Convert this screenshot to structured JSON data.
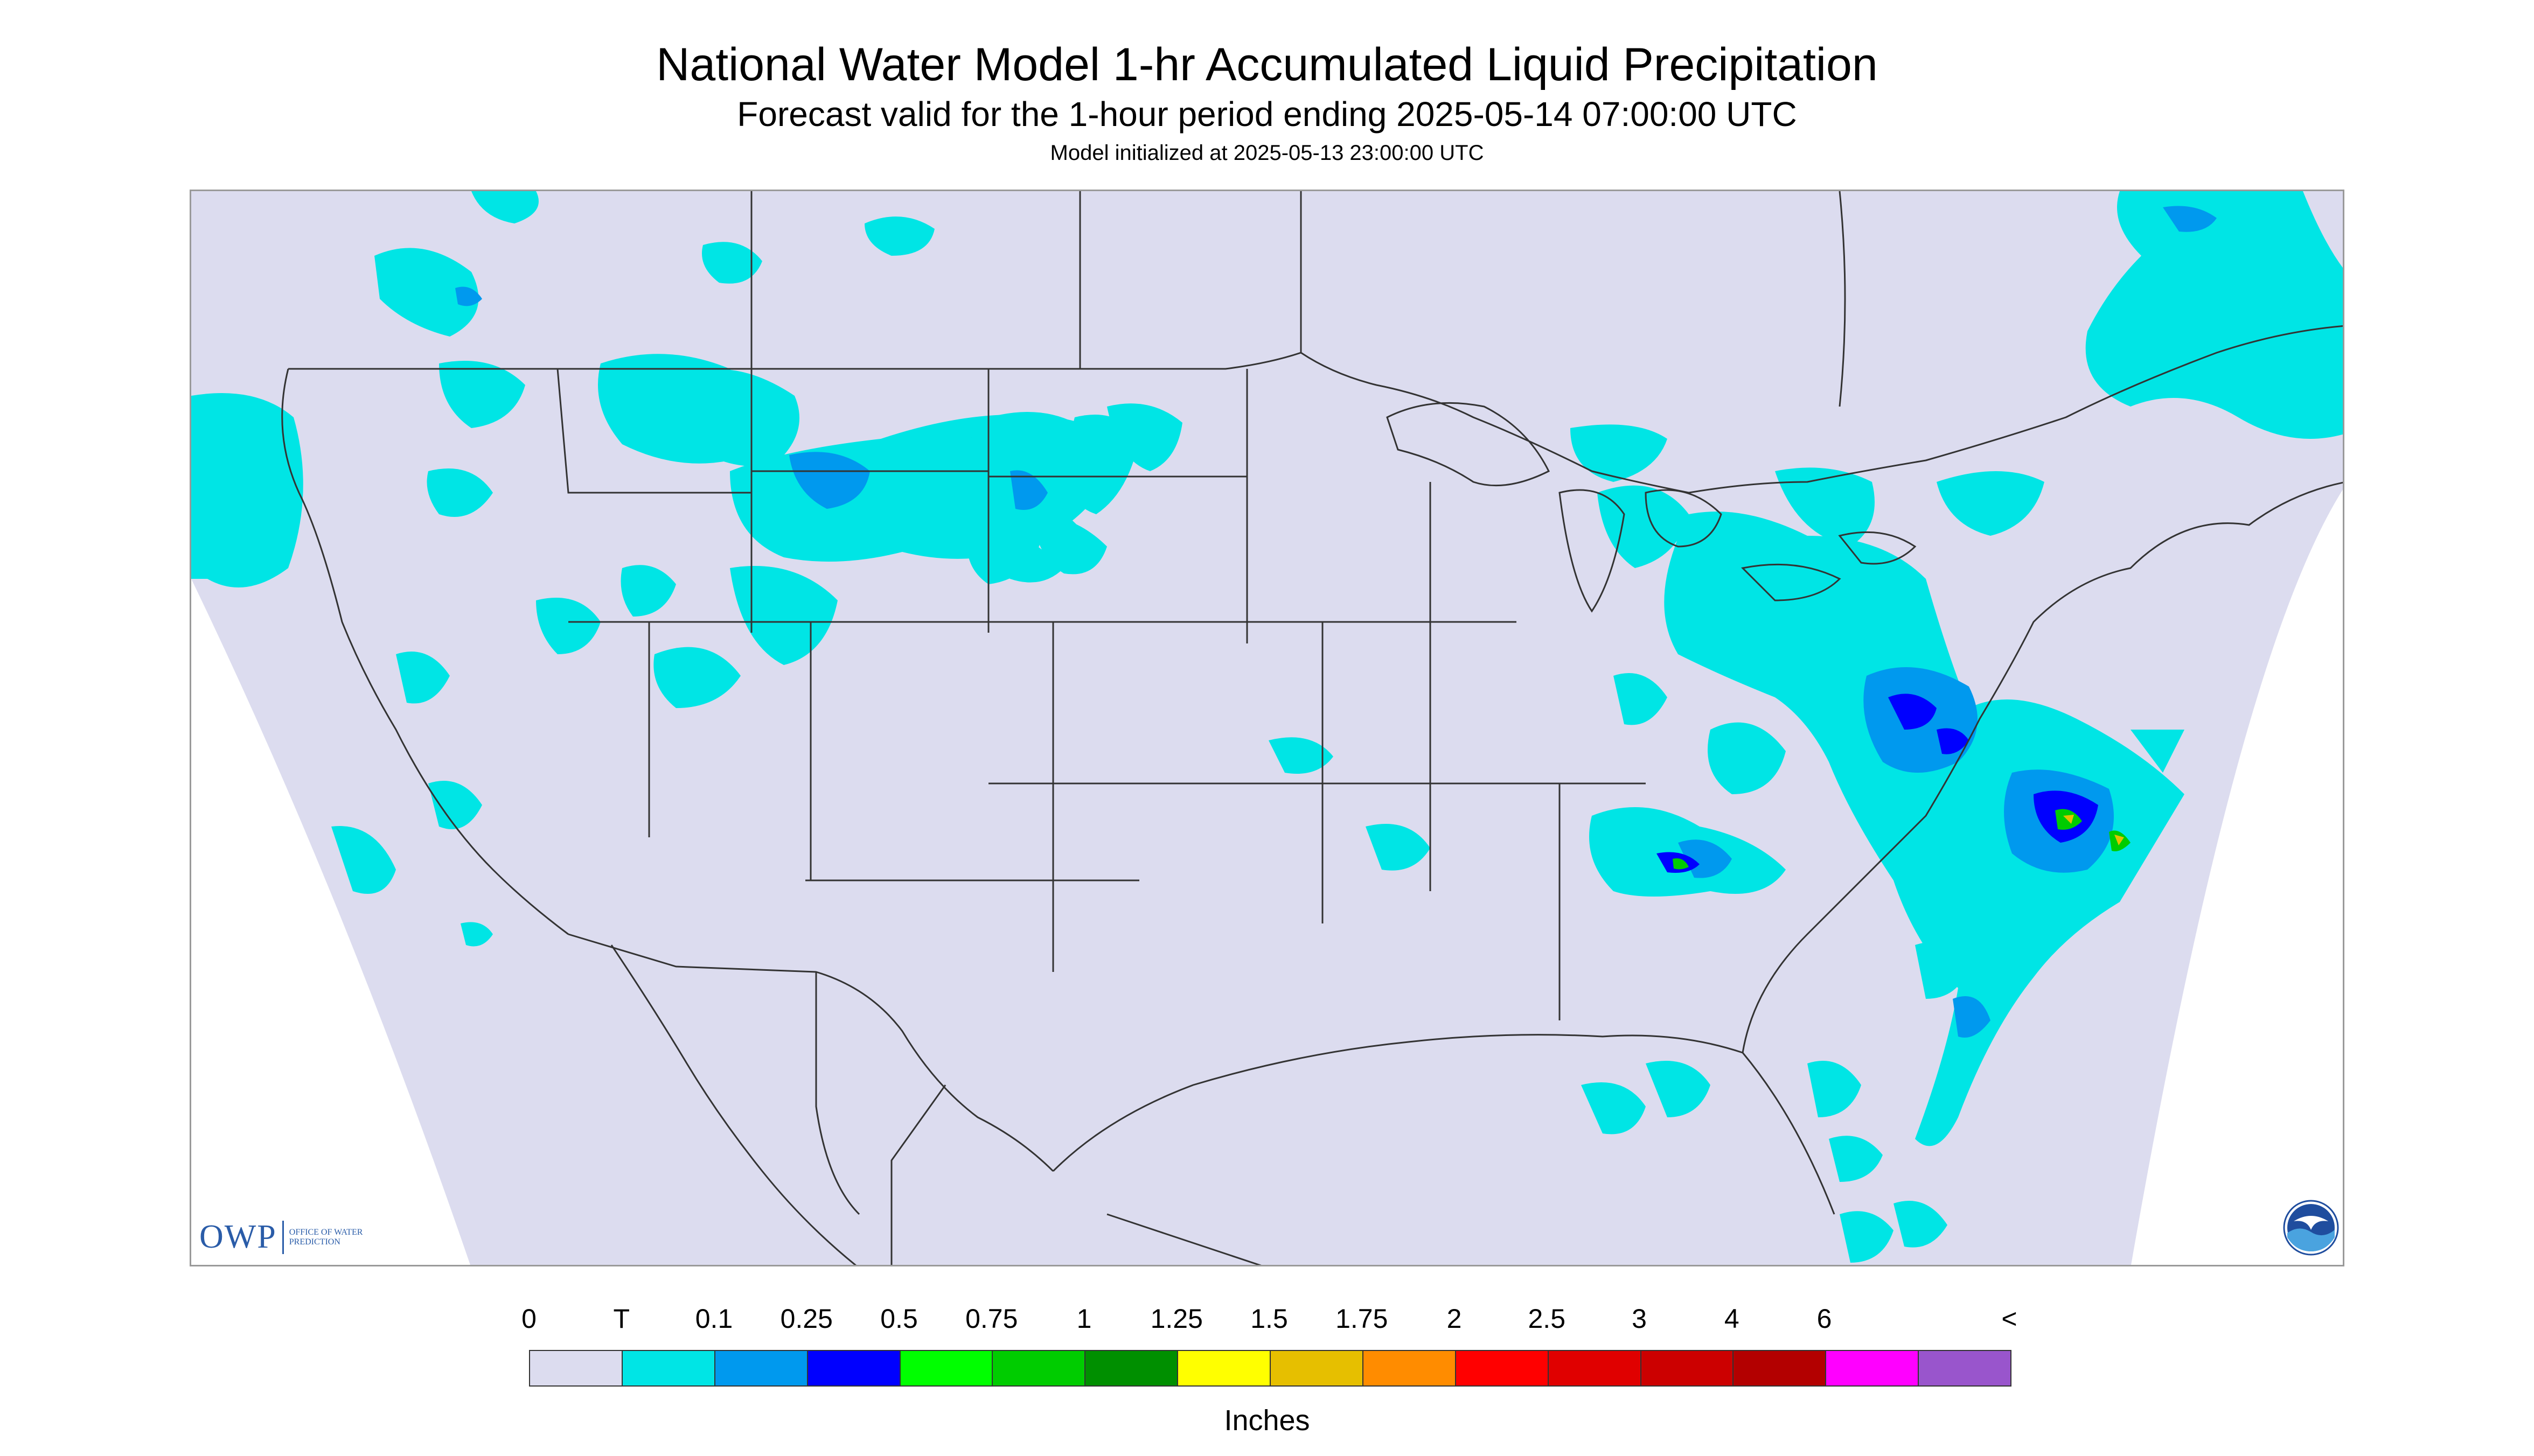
{
  "title": "National Water Model 1-hr Accumulated Liquid Precipitation",
  "subtitle": "Forecast valid for the 1-hour period ending 2025-05-14 07:00:00 UTC",
  "init_line": "Model initialized at 2025-05-13 23:00:00 UTC",
  "logos": {
    "owp_mark": "OWP",
    "owp_text": "Office of Water Prediction",
    "noaa_text": "NOAA"
  },
  "legend": {
    "labels": [
      "0",
      "T",
      "0.1",
      "0.25",
      "0.5",
      "0.75",
      "1",
      "1.25",
      "1.5",
      "1.75",
      "2",
      "2.5",
      "3",
      "4",
      "6",
      "<"
    ],
    "colors": [
      "#dcdcef",
      "#00e5e5",
      "#0099ee",
      "#0000ff",
      "#00ff00",
      "#00cc00",
      "#008f00",
      "#ffff00",
      "#e6bf00",
      "#ff8c00",
      "#ff0000",
      "#e00000",
      "#cc0000",
      "#b30000",
      "#ff00ff",
      "#9955cc"
    ],
    "units": "Inches"
  },
  "map_colors": {
    "background": "#dcdcef",
    "outside": "#ffffff",
    "boundary": "#333333",
    "trace": "#00e5e5",
    "light": "#0099ee",
    "moderate": "#0000ff",
    "heavy": "#00cc00",
    "very_heavy": "#e6bf00"
  }
}
